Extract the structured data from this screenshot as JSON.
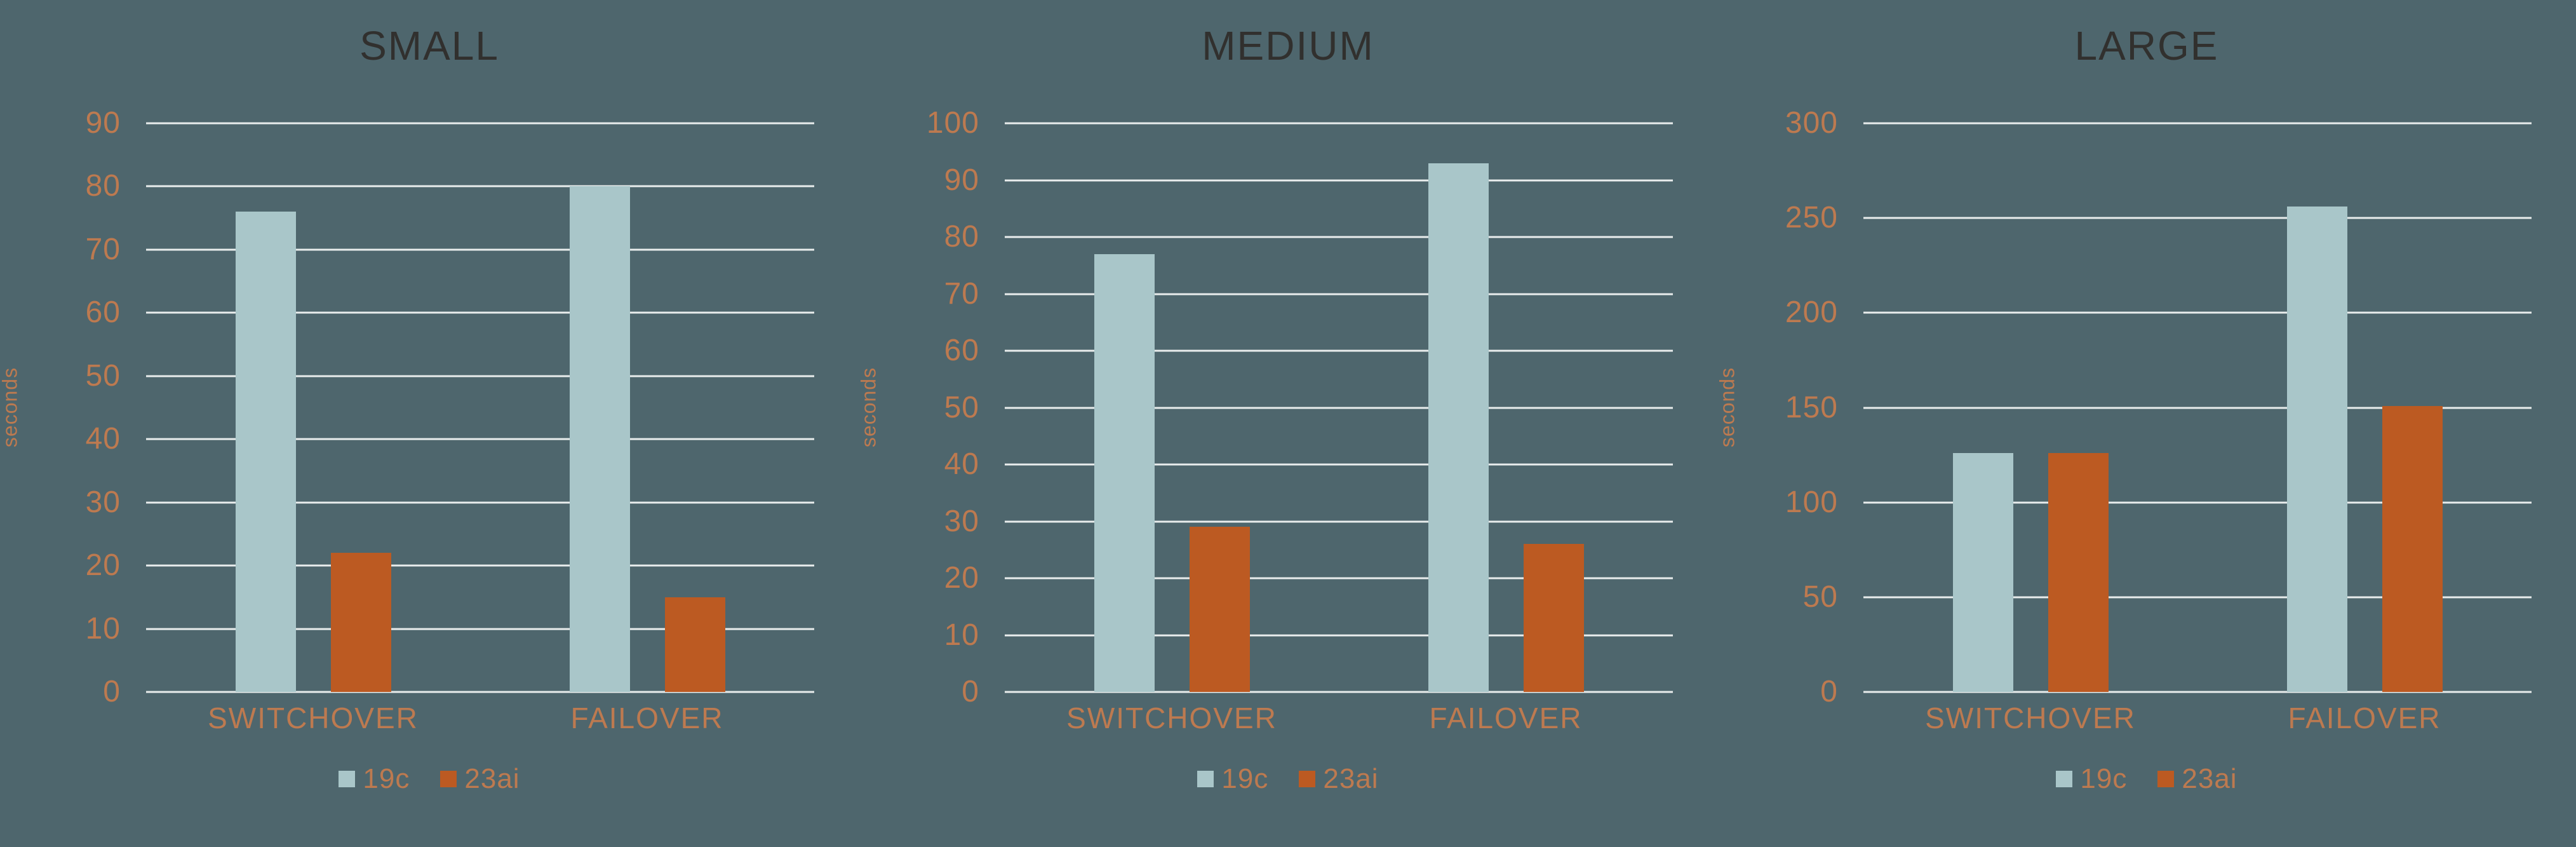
{
  "colors": {
    "background": "#4e666d",
    "gridline": "#e9eded",
    "tick_label": "#bd7a50",
    "title": "#31302e"
  },
  "chart_data": [
    {
      "type": "bar",
      "title": "SMALL",
      "ylabel": "seconds",
      "categories": [
        "SWITCHOVER",
        "FAILOVER"
      ],
      "series": [
        {
          "name": "19c",
          "color": "#a9c6c9",
          "values": [
            76,
            80
          ]
        },
        {
          "name": "23ai",
          "color": "#bc5a22",
          "values": [
            22,
            15
          ]
        }
      ],
      "ylim": [
        0,
        90
      ],
      "ytick_step": 10,
      "grid": true,
      "legend_position": "bottom"
    },
    {
      "type": "bar",
      "title": "MEDIUM",
      "ylabel": "seconds",
      "categories": [
        "SWITCHOVER",
        "FAILOVER"
      ],
      "series": [
        {
          "name": "19c",
          "color": "#a9c6c9",
          "values": [
            77,
            93
          ]
        },
        {
          "name": "23ai",
          "color": "#bc5a22",
          "values": [
            29,
            26
          ]
        }
      ],
      "ylim": [
        0,
        100
      ],
      "ytick_step": 10,
      "grid": true,
      "legend_position": "bottom"
    },
    {
      "type": "bar",
      "title": "LARGE",
      "ylabel": "seconds",
      "categories": [
        "SWITCHOVER",
        "FAILOVER"
      ],
      "series": [
        {
          "name": "19c",
          "color": "#a9c6c9",
          "values": [
            126,
            256
          ]
        },
        {
          "name": "23ai",
          "color": "#bc5a22",
          "values": [
            126,
            151
          ]
        }
      ],
      "ylim": [
        0,
        300
      ],
      "ytick_step": 50,
      "grid": true,
      "legend_position": "bottom"
    }
  ]
}
